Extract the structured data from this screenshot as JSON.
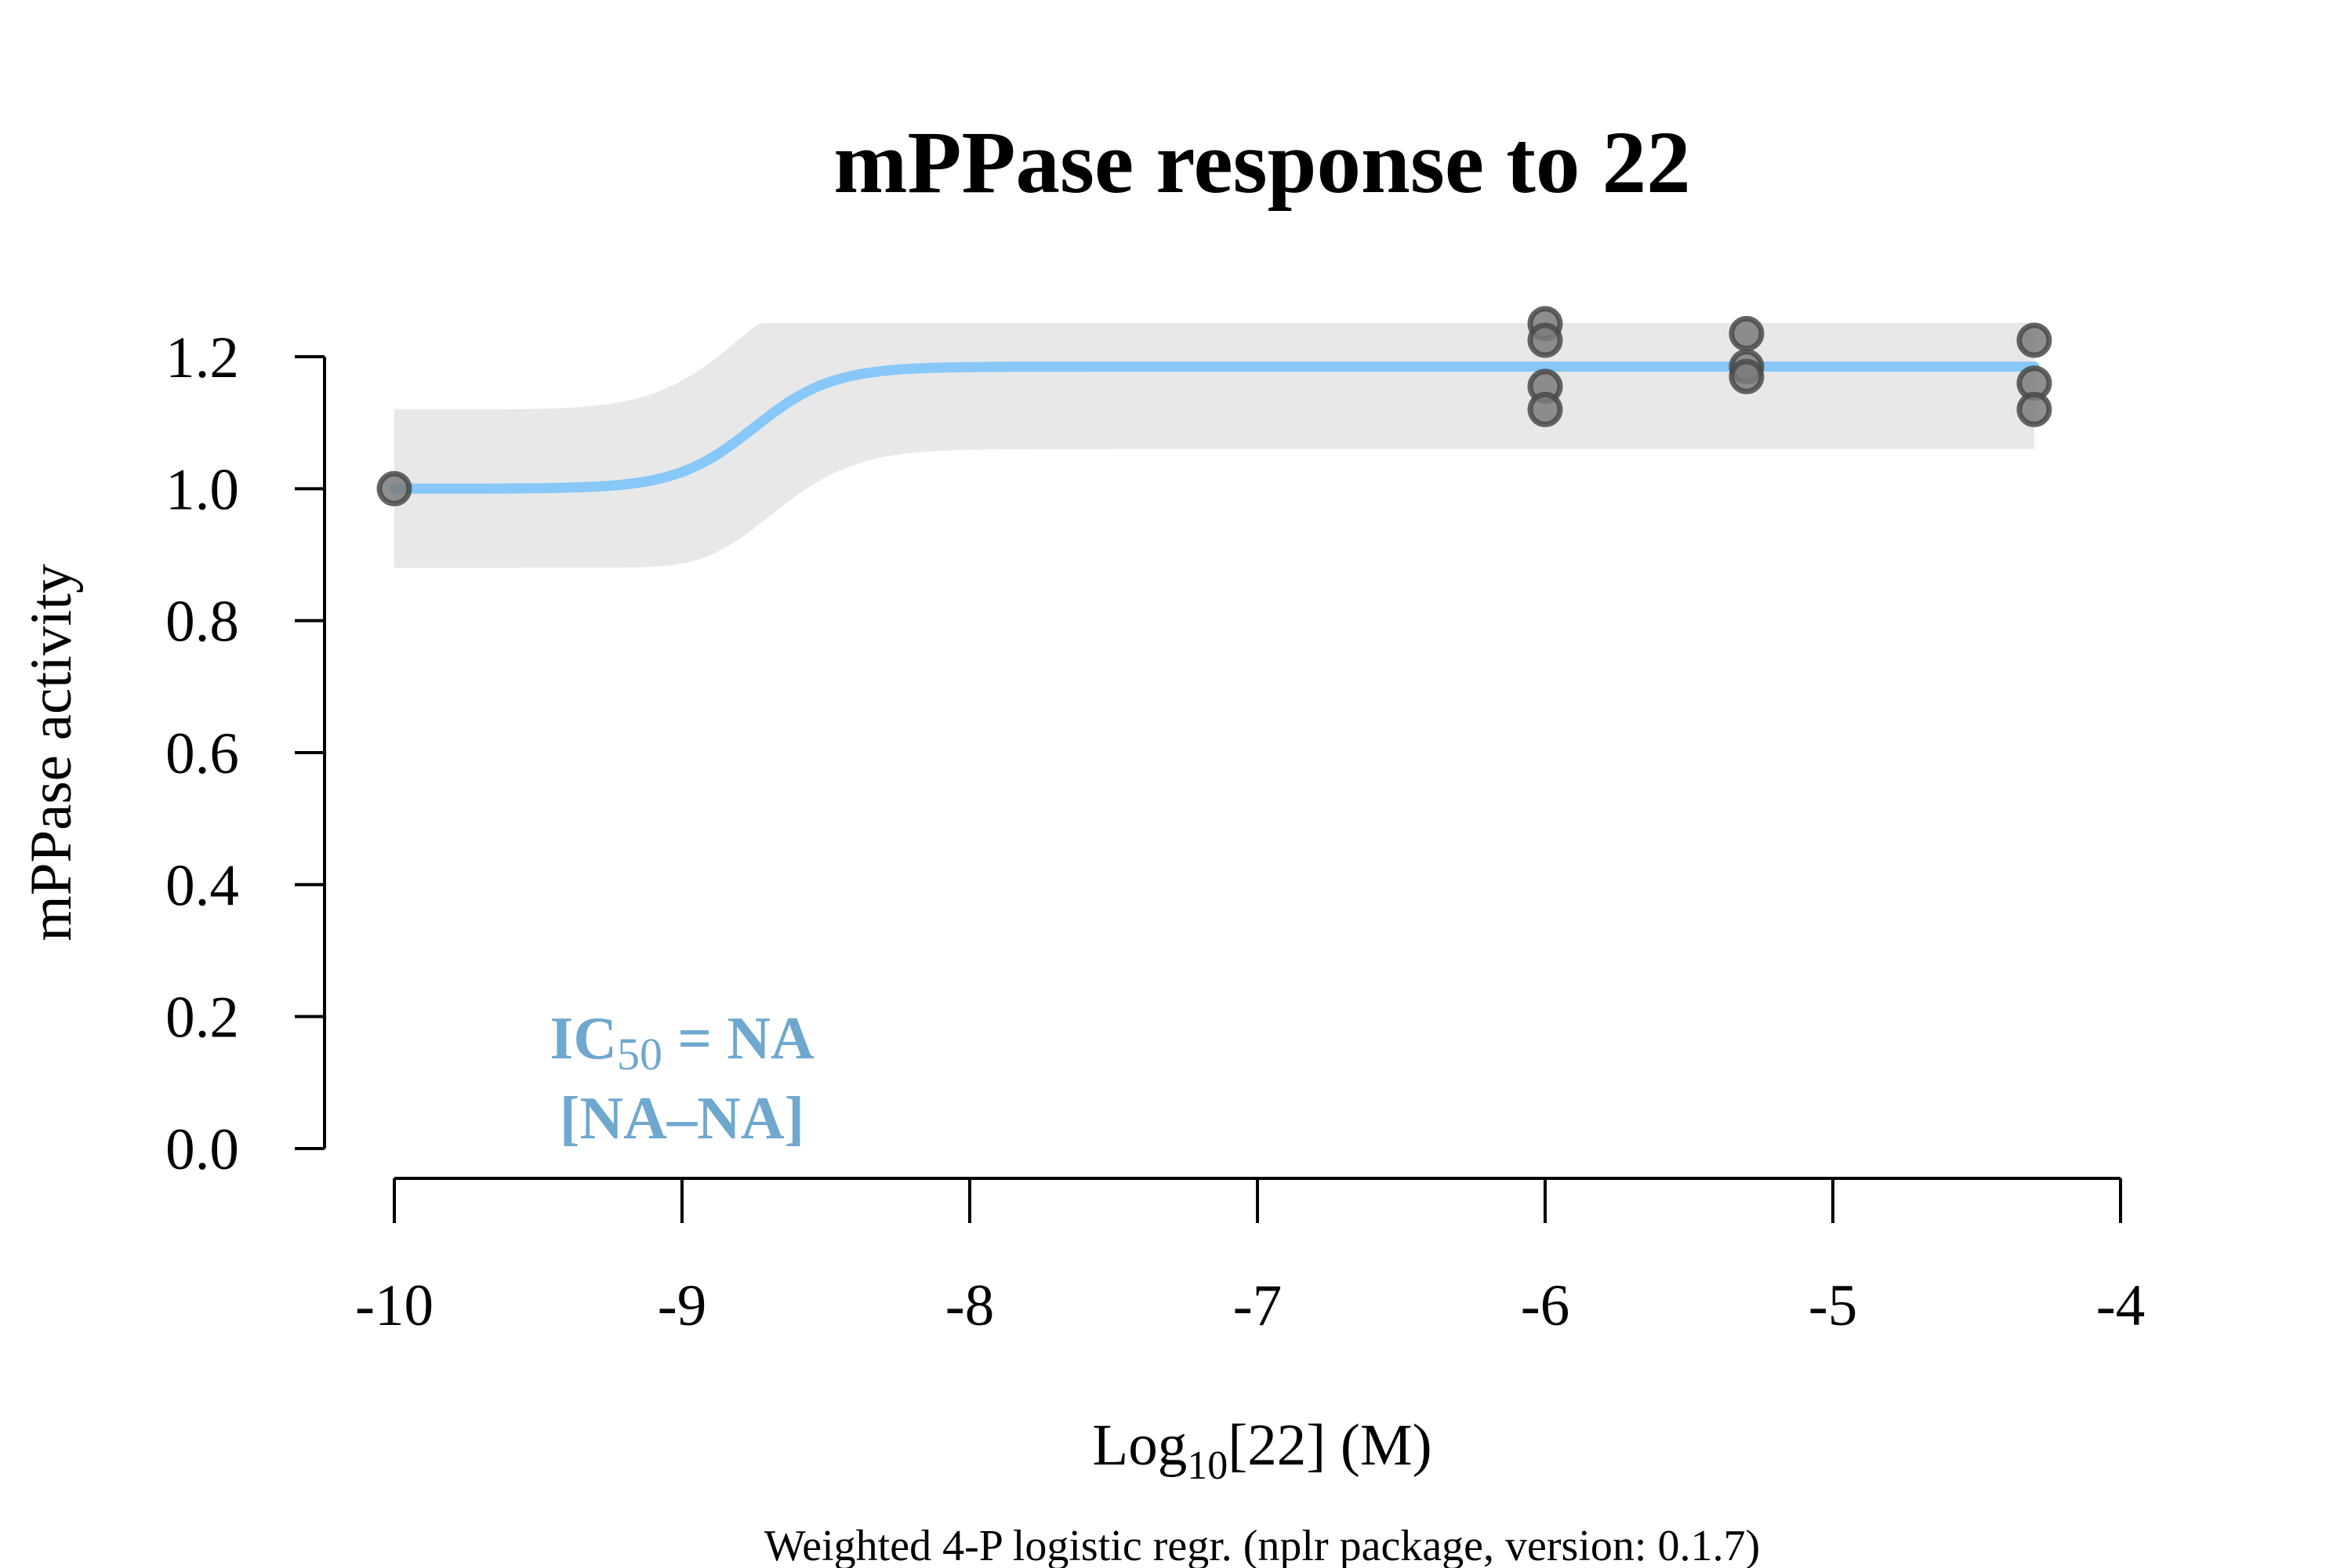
{
  "chart_data": {
    "type": "scatter",
    "title": "mPPase response to 22",
    "xlabel": {
      "prefix": "Log",
      "sub": "10",
      "suffix": "[22] (M)"
    },
    "ylabel": "mPPase activity",
    "footnote": "Weighted 4-P logistic regr. (nplr package, version: 0.1.7)",
    "xlim": [
      -10,
      -4
    ],
    "ylim": [
      0,
      1.2
    ],
    "x_ticks": [
      -10,
      -9,
      -8,
      -7,
      -6,
      -5,
      -4
    ],
    "x_tick_labels": [
      "-10",
      "-9",
      "-8",
      "-7",
      "-6",
      "-5",
      "-4"
    ],
    "y_ticks": [
      0,
      0.2,
      0.4,
      0.6,
      0.8,
      1.0,
      1.2
    ],
    "y_tick_labels": [
      "0.0",
      "0.2",
      "0.4",
      "0.6",
      "0.8",
      "1.0",
      "1.2"
    ],
    "ic50_annotation": {
      "label_prefix": "IC",
      "label_sub": "50",
      "label_suffix": " = NA",
      "interval": "[NA–NA]"
    },
    "points": [
      {
        "x": -10,
        "y": 1.0
      },
      {
        "x": -6,
        "y": 1.25
      },
      {
        "x": -6,
        "y": 1.225
      },
      {
        "x": -6,
        "y": 1.155
      },
      {
        "x": -6,
        "y": 1.12
      },
      {
        "x": -5.3,
        "y": 1.235
      },
      {
        "x": -5.3,
        "y": 1.185
      },
      {
        "x": -5.3,
        "y": 1.17
      },
      {
        "x": -4.3,
        "y": 1.225
      },
      {
        "x": -4.3,
        "y": 1.16
      },
      {
        "x": -4.3,
        "y": 1.12
      }
    ],
    "fit": {
      "bottom": 1.0,
      "top": 1.185,
      "x_mid": -8.75,
      "hill_slope": 3.2,
      "x_range": [
        -10,
        -4.3
      ]
    },
    "confidence_band": {
      "half_width_low": 0.12,
      "half_width_high": 0.125
    },
    "colors": {
      "fit_line": "#87c8f8",
      "band": "#e8e8e8",
      "point_fill": "#7b7b7b",
      "point_stroke": "#4a4a4a",
      "annotation": "#6fa8cf"
    }
  }
}
